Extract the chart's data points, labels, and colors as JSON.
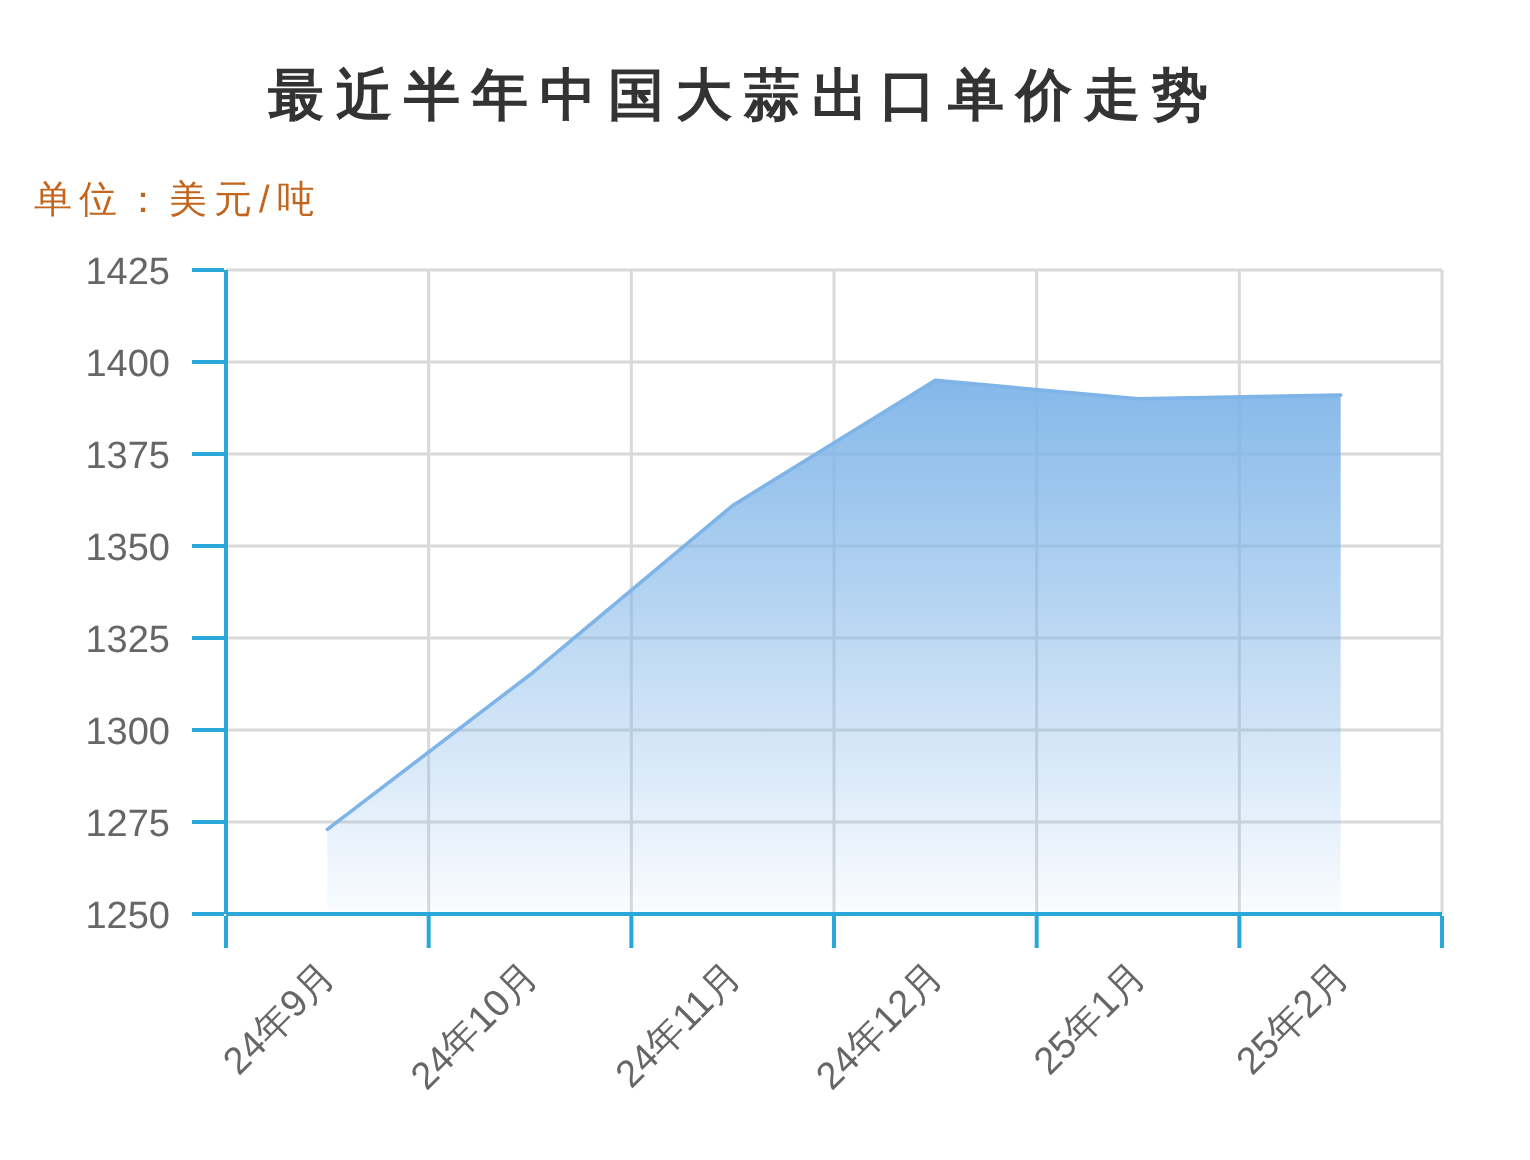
{
  "chart_data": {
    "type": "area",
    "title": "最近半年中国大蒜出口单价走势",
    "ylabel": "单位：美元/吨",
    "categories": [
      "24年9月",
      "24年10月",
      "24年11月",
      "24年12月",
      "25年1月",
      "25年2月"
    ],
    "series": [
      {
        "color": "#7eb4e8",
        "values": [
          1273,
          1315,
          1361,
          1395,
          1390,
          1391
        ]
      }
    ],
    "ylim": [
      1250,
      1425
    ],
    "yticks": [
      1250,
      1275,
      1300,
      1325,
      1350,
      1375,
      1400,
      1425
    ],
    "grid": true
  }
}
